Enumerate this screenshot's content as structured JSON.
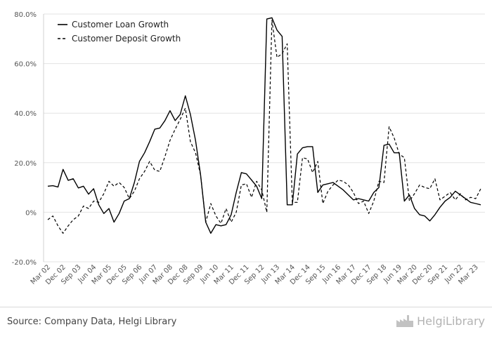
{
  "chart_data": {
    "type": "line",
    "title": "",
    "xlabel": "",
    "ylabel": "",
    "ylim": [
      -20,
      80
    ],
    "y_ticks": [
      "80.0%",
      "60.0%",
      "40.0%",
      "20.0%",
      "0%",
      "-20.0%"
    ],
    "y_tick_values": [
      80,
      60,
      40,
      20,
      0,
      -20
    ],
    "x_tick_labels": [
      "Mar 02",
      "Dec 02",
      "Sep 03",
      "Jun 04",
      "Mar 05",
      "Dec 05",
      "Sep 06",
      "Jun 07",
      "Mar 08",
      "Dec 08",
      "Sep 09",
      "Jun 10",
      "Mar 11",
      "Dec 11",
      "Sep 12",
      "Jun 13",
      "Mar 14",
      "Dec 14",
      "Sep 15",
      "Jun 16",
      "Mar 17",
      "Dec 17",
      "Sep 18",
      "Jun 19",
      "Mar 20",
      "Dec 20",
      "Sep 21",
      "Jun 22",
      "Mar 23"
    ],
    "legend_position": "top-left",
    "grid": true,
    "x": [
      "Mar 02",
      "Jun 02",
      "Sep 02",
      "Dec 02",
      "Mar 03",
      "Jun 03",
      "Sep 03",
      "Dec 03",
      "Mar 04",
      "Jun 04",
      "Sep 04",
      "Dec 04",
      "Mar 05",
      "Jun 05",
      "Sep 05",
      "Dec 05",
      "Mar 06",
      "Jun 06",
      "Sep 06",
      "Dec 06",
      "Mar 07",
      "Jun 07",
      "Sep 07",
      "Dec 07",
      "Mar 08",
      "Jun 08",
      "Sep 08",
      "Dec 08",
      "Mar 09",
      "Jun 09",
      "Sep 09",
      "Dec 09",
      "Mar 10",
      "Jun 10",
      "Sep 10",
      "Dec 10",
      "Mar 11",
      "Jun 11",
      "Sep 11",
      "Dec 11",
      "Mar 12",
      "Jun 12",
      "Sep 12",
      "Dec 12",
      "Mar 13",
      "Jun 13",
      "Sep 13",
      "Dec 13",
      "Mar 14",
      "Jun 14",
      "Sep 14",
      "Dec 14",
      "Mar 15",
      "Jun 15",
      "Sep 15",
      "Dec 15",
      "Mar 16",
      "Jun 16",
      "Sep 16",
      "Dec 16",
      "Mar 17",
      "Jun 17",
      "Sep 17",
      "Dec 17",
      "Mar 18",
      "Jun 18",
      "Sep 18",
      "Dec 18",
      "Mar 19",
      "Jun 19",
      "Sep 19",
      "Dec 19",
      "Mar 20",
      "Jun 20",
      "Sep 20",
      "Dec 20",
      "Mar 21",
      "Jun 21",
      "Sep 21",
      "Dec 21",
      "Mar 22",
      "Jun 22",
      "Sep 22",
      "Dec 22",
      "Mar 23",
      "Jun 23"
    ],
    "series": [
      {
        "name": "Customer Loan Growth",
        "style": "solid",
        "color": "#000000",
        "values": [
          10.5,
          10.7,
          10.2,
          17.3,
          12.9,
          13.5,
          9.8,
          10.5,
          7.3,
          9.5,
          3.0,
          -0.5,
          1.5,
          -4.0,
          -0.5,
          4.5,
          5.5,
          12.0,
          20.5,
          24.0,
          28.5,
          33.5,
          34.0,
          37.0,
          41.0,
          37.0,
          39.5,
          47.0,
          39.5,
          29.0,
          15.0,
          -4.0,
          -8.5,
          -5.0,
          -5.5,
          -5.0,
          -1.0,
          8.0,
          16.0,
          15.5,
          13.0,
          10.5,
          5.5,
          78.0,
          78.5,
          73.5,
          71.0,
          3.0,
          3.0,
          23.5,
          26.0,
          26.5,
          26.5,
          8.0,
          11.0,
          11.5,
          12.0,
          10.5,
          9.0,
          7.0,
          5.0,
          5.5,
          5.0,
          4.5,
          8.0,
          10.0,
          27.0,
          27.5,
          24.0,
          24.0,
          4.5,
          7.0,
          1.5,
          -1.0,
          -1.5,
          -3.5,
          -1.0,
          2.0,
          4.5,
          6.0,
          8.5,
          7.0,
          5.5,
          4.0,
          3.5,
          3.0
        ]
      },
      {
        "name": "Customer Deposit Growth",
        "style": "dashed",
        "color": "#000000",
        "values": [
          -3.0,
          -1.5,
          -5.5,
          -8.5,
          -5.5,
          -3.0,
          -1.5,
          2.5,
          1.5,
          4.5,
          4.0,
          7.5,
          12.5,
          10.5,
          12.0,
          10.0,
          5.5,
          8.5,
          13.5,
          16.5,
          20.5,
          17.0,
          16.5,
          22.5,
          29.0,
          33.5,
          37.5,
          42.0,
          28.5,
          24.0,
          15.0,
          -4.0,
          3.5,
          -1.5,
          -4.5,
          1.5,
          -4.0,
          0.0,
          11.0,
          11.5,
          6.0,
          12.5,
          9.0,
          0.0,
          77.5,
          62.5,
          64.0,
          68.0,
          4.0,
          4.0,
          22.0,
          21.5,
          16.0,
          20.5,
          3.5,
          8.5,
          11.0,
          13.0,
          12.5,
          11.0,
          8.0,
          3.5,
          4.5,
          -0.5,
          4.5,
          12.5,
          12.0,
          34.5,
          30.0,
          23.5,
          22.0,
          4.5,
          7.5,
          11.0,
          10.0,
          9.5,
          13.5,
          5.0,
          6.5,
          8.0,
          5.0,
          7.5,
          5.0,
          6.0,
          5.5,
          9.5
        ]
      }
    ]
  },
  "source_text": "Source: Company Data, Helgi Library",
  "brand": {
    "name": "HelgiLibrary",
    "icon": "factory-icon",
    "color": "#b3b3b3"
  }
}
